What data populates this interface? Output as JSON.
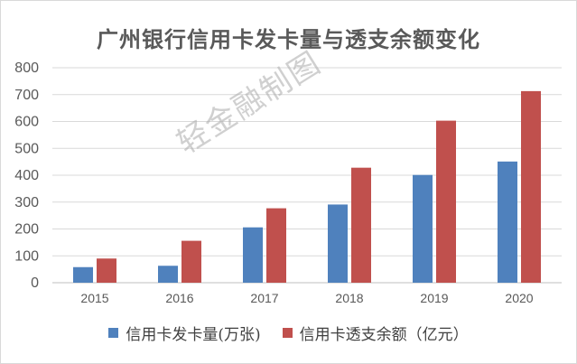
{
  "chart_data": {
    "type": "bar",
    "title": "广州银行信用卡发卡量与透支余额变化",
    "categories": [
      "2015",
      "2016",
      "2017",
      "2018",
      "2019",
      "2020"
    ],
    "series": [
      {
        "name": "信用卡发卡量(万张)",
        "values": [
          58,
          63,
          206,
          291,
          401,
          451
        ],
        "color": "#4f81bd"
      },
      {
        "name": "信用卡透支余额（亿元）",
        "values": [
          90,
          156,
          277,
          428,
          603,
          713
        ],
        "color": "#c0504d"
      }
    ],
    "ylim": [
      0,
      800
    ],
    "yticks": [
      0,
      100,
      200,
      300,
      400,
      500,
      600,
      700,
      800
    ],
    "grid": true,
    "legend_position": "bottom"
  },
  "watermark": "轻金融制图"
}
